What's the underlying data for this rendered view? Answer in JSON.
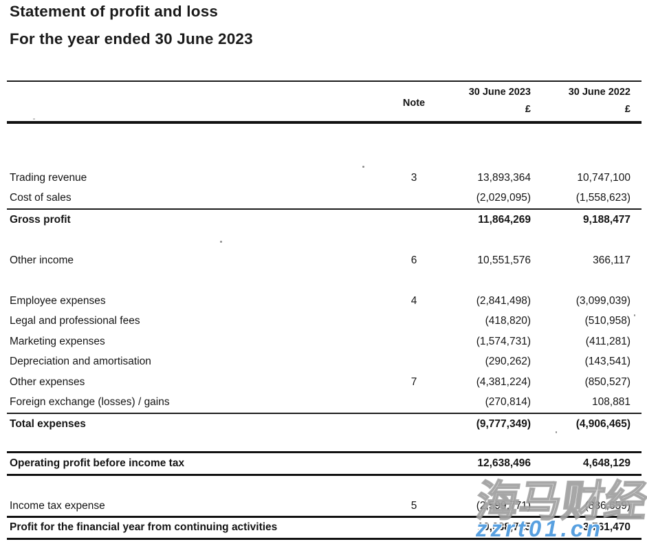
{
  "document": {
    "title": "Statement of profit and loss",
    "subtitle": "For the year ended 30 June 2023"
  },
  "table": {
    "header": {
      "note": "Note",
      "period_2023": "30 June 2023",
      "period_2022": "30 June 2022",
      "currency_2023": "£",
      "currency_2022": "£"
    },
    "rows": [
      {
        "label": "Trading revenue",
        "note": "3",
        "v2023": "13,893,364",
        "v2022": "10,747,100"
      },
      {
        "label": "Cost of sales",
        "note": "",
        "v2023": "(2,029,095)",
        "v2022": "(1,558,623)"
      },
      {
        "label": "Gross profit",
        "note": "",
        "v2023": "11,864,269",
        "v2022": "9,188,477"
      },
      {
        "label": "Other income",
        "note": "6",
        "v2023": "10,551,576",
        "v2022": "366,117"
      },
      {
        "label": "Employee expenses",
        "note": "4",
        "v2023": "(2,841,498)",
        "v2022": "(3,099,039)"
      },
      {
        "label": "Legal and professional fees",
        "note": "",
        "v2023": "(418,820)",
        "v2022": "(510,958)"
      },
      {
        "label": "Marketing expenses",
        "note": "",
        "v2023": "(1,574,731)",
        "v2022": "(411,281)"
      },
      {
        "label": "Depreciation and amortisation",
        "note": "",
        "v2023": "(290,262)",
        "v2022": "(143,541)"
      },
      {
        "label": "Other expenses",
        "note": "7",
        "v2023": "(4,381,224)",
        "v2022": "(850,527)"
      },
      {
        "label": "Foreign exchange (losses) / gains",
        "note": "",
        "v2023": "(270,814)",
        "v2022": "108,881"
      },
      {
        "label": "Total expenses",
        "note": "",
        "v2023": "(9,777,349)",
        "v2022": "(4,906,465)"
      },
      {
        "label": "Operating profit before income tax",
        "note": "",
        "v2023": "12,638,496",
        "v2022": "4,648,129"
      },
      {
        "label": "Income tax expense",
        "note": "5",
        "v2023": "(2,599,771)",
        "v2022": "(886,659)"
      },
      {
        "label": "Profit for the financial year from continuing activities",
        "note": "",
        "v2023": "10,038,725",
        "v2022": "3,761,470"
      }
    ]
  },
  "watermark": {
    "cn_text": "海马财经",
    "url_text": "zzrt01.cn",
    "blue_color": "#58a0e0"
  }
}
